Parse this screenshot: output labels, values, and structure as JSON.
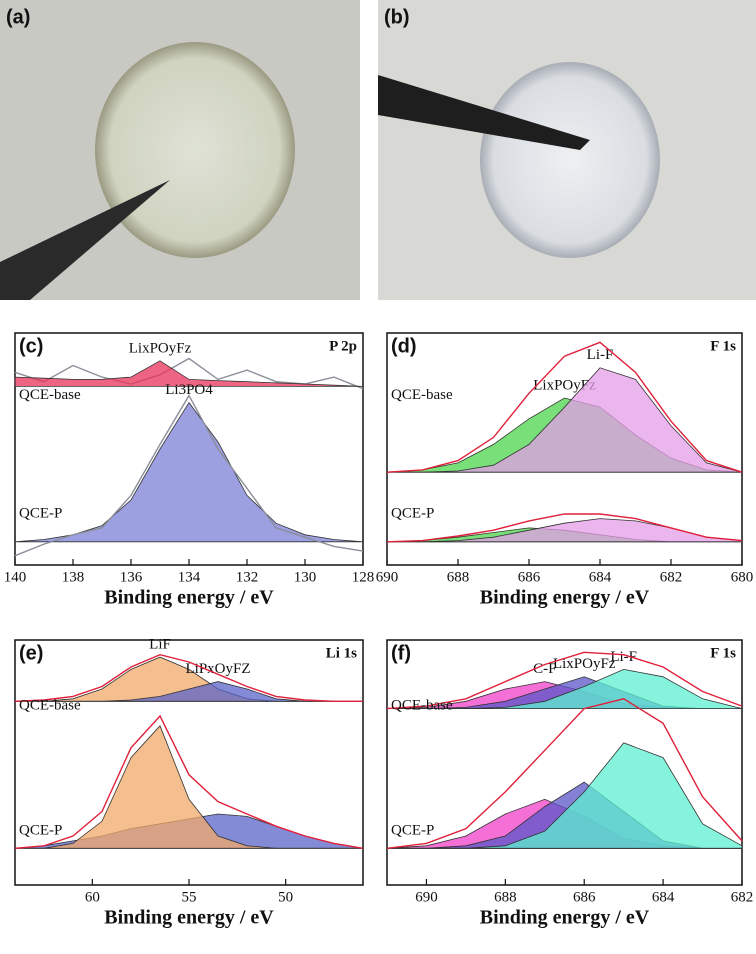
{
  "photos": [
    "(a)",
    "(b)"
  ],
  "chart_data": [
    {
      "type": "line",
      "label": "(c)",
      "core": "P 2p",
      "xlabel": "Binding energy / eV",
      "samples": [
        "QCE-base",
        "QCE-P"
      ],
      "xlim": [
        140,
        128
      ],
      "xticks": [
        140,
        138,
        136,
        134,
        132,
        130,
        128
      ],
      "ylim": [
        0,
        10
      ],
      "x": [
        140,
        139,
        138,
        137,
        136,
        135,
        134,
        133,
        132,
        131,
        130,
        129,
        128
      ],
      "series": [
        {
          "color": "#8a8f99",
          "fill": false,
          "values": [
            8.3,
            7.9,
            8.6,
            8.1,
            7.8,
            8.2,
            8.9,
            8.0,
            8.4,
            7.9,
            7.8,
            8.1,
            7.6
          ]
        },
        {
          "name": "LixPOyFz",
          "color": "#e8325a",
          "fill": true,
          "values": [
            8.1,
            8.05,
            8.0,
            8.0,
            8.1,
            8.8,
            8.0,
            7.95,
            7.9,
            7.85,
            7.8,
            7.75,
            7.7
          ]
        },
        {
          "name": "Li3PO4",
          "color": "#7b7fd6",
          "fill": true,
          "values": [
            1.0,
            1.1,
            1.3,
            1.7,
            2.8,
            5.0,
            7.0,
            5.3,
            3.0,
            1.8,
            1.3,
            1.1,
            1.0
          ]
        },
        {
          "color": "#8a8f99",
          "fill": false,
          "values": [
            0.4,
            0.9,
            1.3,
            1.6,
            3.0,
            5.2,
            7.3,
            5.0,
            3.3,
            1.6,
            1.2,
            0.8,
            0.6
          ]
        }
      ]
    },
    {
      "type": "line",
      "label": "(d)",
      "core": "F 1s",
      "xlabel": "Binding energy / eV",
      "samples": [
        "QCE-base",
        "QCE-P"
      ],
      "xlim": [
        690,
        680
      ],
      "xticks": [
        690,
        688,
        686,
        684,
        682,
        680
      ],
      "ylim": [
        0,
        10
      ],
      "x": [
        690,
        689,
        688,
        687,
        686,
        685,
        684,
        683,
        682,
        681,
        680
      ],
      "series": [
        {
          "name": "LixPOyFz",
          "color": "#4cd44c",
          "fill": true,
          "values": [
            4.0,
            4.1,
            4.4,
            5.2,
            6.3,
            7.2,
            6.8,
            5.6,
            4.6,
            4.1,
            4.0
          ]
        },
        {
          "name": "Li-F",
          "color": "#e49ce8",
          "fill": true,
          "values": [
            4.0,
            4.0,
            4.05,
            4.3,
            5.2,
            6.8,
            8.5,
            8.0,
            6.0,
            4.4,
            4.0
          ]
        },
        {
          "color": "#e0203a",
          "fill": false,
          "values": [
            4.0,
            4.1,
            4.5,
            5.5,
            7.4,
            9.0,
            9.6,
            8.3,
            6.2,
            4.5,
            4.0
          ]
        },
        {
          "color": "#4cd44c",
          "fill": true,
          "values": [
            1.0,
            1.05,
            1.2,
            1.4,
            1.6,
            1.5,
            1.3,
            1.1,
            1.0,
            1.0,
            1.0
          ]
        },
        {
          "color": "#e49ce8",
          "fill": true,
          "values": [
            1.0,
            1.0,
            1.05,
            1.2,
            1.5,
            1.8,
            2.0,
            1.9,
            1.6,
            1.2,
            1.05
          ]
        },
        {
          "color": "#e0203a",
          "fill": false,
          "values": [
            1.0,
            1.05,
            1.25,
            1.5,
            1.9,
            2.2,
            2.2,
            2.0,
            1.6,
            1.2,
            1.05
          ]
        }
      ]
    },
    {
      "type": "line",
      "label": "(e)",
      "core": "Li 1s",
      "xlabel": "Binding energy / eV",
      "samples": [
        "QCE-base",
        "QCE-P"
      ],
      "xlim": [
        64,
        46
      ],
      "xticks": [
        60,
        55,
        50
      ],
      "ylim": [
        0,
        10
      ],
      "x": [
        64,
        62.5,
        61,
        59.5,
        58,
        56.5,
        55,
        53.5,
        52,
        50.5,
        49,
        47.5,
        46
      ],
      "series": [
        {
          "name": "LiF",
          "color": "#f2a868",
          "fill": true,
          "values": [
            7.5,
            7.5,
            7.6,
            8.0,
            8.8,
            9.3,
            8.8,
            8.0,
            7.6,
            7.5,
            7.5,
            7.5,
            7.5
          ]
        },
        {
          "name": "LiPxOyFZ",
          "color": "#5a64c8",
          "fill": true,
          "values": [
            7.5,
            7.5,
            7.5,
            7.5,
            7.55,
            7.7,
            8.0,
            8.3,
            8.0,
            7.6,
            7.5,
            7.5,
            7.5
          ]
        },
        {
          "color": "#e0203a",
          "fill": false,
          "values": [
            7.5,
            7.55,
            7.7,
            8.1,
            8.9,
            9.4,
            9.1,
            8.6,
            8.1,
            7.7,
            7.55,
            7.5,
            7.5
          ]
        },
        {
          "color": "#5a64c8",
          "fill": true,
          "values": [
            1.5,
            1.6,
            1.8,
            2.0,
            2.3,
            2.5,
            2.7,
            2.9,
            2.8,
            2.4,
            2.0,
            1.7,
            1.5
          ]
        },
        {
          "color": "#f2a868",
          "fill": true,
          "values": [
            1.5,
            1.5,
            1.7,
            2.6,
            5.2,
            6.5,
            3.5,
            2.0,
            1.6,
            1.5,
            1.5,
            1.5,
            1.5
          ]
        },
        {
          "color": "#e0203a",
          "fill": false,
          "values": [
            1.5,
            1.6,
            2.0,
            3.0,
            5.6,
            6.9,
            4.5,
            3.4,
            2.9,
            2.4,
            2.0,
            1.7,
            1.5
          ]
        }
      ]
    },
    {
      "type": "line",
      "label": "(f)",
      "core": "F 1s",
      "xlabel": "Binding energy / eV",
      "samples": [
        "QCE-base",
        "QCE-P"
      ],
      "xlim": [
        691,
        682
      ],
      "xticks": [
        690,
        688,
        686,
        684,
        682
      ],
      "ylim": [
        0,
        10
      ],
      "x": [
        691,
        690,
        689,
        688,
        687,
        686,
        685,
        684,
        683,
        682
      ],
      "series": [
        {
          "name": "C-F",
          "color": "#f040c8",
          "fill": true,
          "values": [
            7.2,
            7.25,
            7.5,
            8.0,
            8.3,
            7.9,
            7.4,
            7.25,
            7.2,
            7.2
          ]
        },
        {
          "name": "LixPOyFz",
          "color": "#5a56c8",
          "fill": true,
          "values": [
            7.2,
            7.2,
            7.25,
            7.5,
            8.0,
            8.5,
            7.9,
            7.3,
            7.2,
            7.2
          ]
        },
        {
          "name": "Li-F",
          "color": "#5ef0d0",
          "fill": true,
          "values": [
            7.2,
            7.2,
            7.2,
            7.25,
            7.5,
            8.1,
            8.8,
            8.5,
            7.6,
            7.2
          ]
        },
        {
          "color": "#e0203a",
          "fill": false,
          "values": [
            7.2,
            7.3,
            7.6,
            8.3,
            9.0,
            9.5,
            9.4,
            8.9,
            7.9,
            7.3
          ]
        },
        {
          "color": "#f040c8",
          "fill": true,
          "values": [
            1.5,
            1.6,
            2.0,
            2.9,
            3.5,
            2.8,
            1.9,
            1.6,
            1.5,
            1.5
          ]
        },
        {
          "color": "#5a56c8",
          "fill": true,
          "values": [
            1.5,
            1.5,
            1.6,
            2.0,
            3.2,
            4.2,
            3.0,
            1.8,
            1.5,
            1.5
          ]
        },
        {
          "color": "#5ef0d0",
          "fill": true,
          "values": [
            1.5,
            1.5,
            1.5,
            1.6,
            2.2,
            3.8,
            5.8,
            5.2,
            2.5,
            1.6
          ]
        },
        {
          "color": "#e0203a",
          "fill": false,
          "values": [
            1.5,
            1.7,
            2.3,
            3.8,
            5.5,
            7.2,
            7.6,
            6.6,
            3.6,
            1.8
          ]
        }
      ]
    }
  ]
}
